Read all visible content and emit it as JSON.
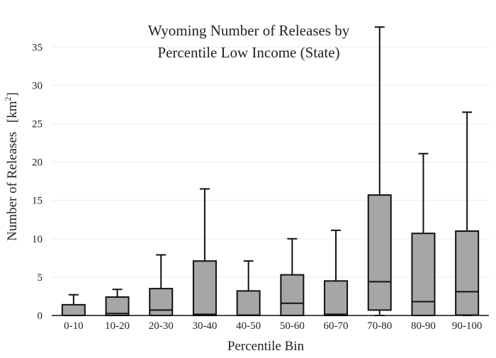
{
  "chart_data": {
    "type": "box",
    "title": [
      "Wyoming Number of Releases by",
      "Percentile Low Income (State)"
    ],
    "xlabel": "Percentile Bin",
    "ylabel": "Number of Releases",
    "ylabel_unit": "[km",
    "ylabel_unit_sup": "2",
    "ylabel_unit_close": "]",
    "ylim": [
      0,
      38
    ],
    "yticks": [
      0,
      5,
      10,
      15,
      20,
      25,
      30,
      35
    ],
    "grid": true,
    "categories": [
      "0-10",
      "10-20",
      "20-30",
      "30-40",
      "40-50",
      "50-60",
      "60-70",
      "70-80",
      "80-90",
      "90-100"
    ],
    "boxes": [
      {
        "min": 0,
        "q1": 0,
        "median": 0,
        "q3": 1.4,
        "max": 2.7
      },
      {
        "min": 0,
        "q1": 0,
        "median": 0.25,
        "q3": 2.4,
        "max": 3.4
      },
      {
        "min": 0,
        "q1": 0,
        "median": 0.7,
        "q3": 3.5,
        "max": 7.9
      },
      {
        "min": 0,
        "q1": 0,
        "median": 0.15,
        "q3": 7.1,
        "max": 16.5
      },
      {
        "min": 0,
        "q1": 0,
        "median": 0.05,
        "q3": 3.2,
        "max": 7.1
      },
      {
        "min": 0,
        "q1": 0,
        "median": 1.6,
        "q3": 5.3,
        "max": 10.0
      },
      {
        "min": 0,
        "q1": 0,
        "median": 0.15,
        "q3": 4.5,
        "max": 11.1
      },
      {
        "min": 0,
        "q1": 0.7,
        "median": 4.4,
        "q3": 15.7,
        "max": 37.6
      },
      {
        "min": 0,
        "q1": 0,
        "median": 1.8,
        "q3": 10.7,
        "max": 21.1
      },
      {
        "min": 0,
        "q1": 0.05,
        "median": 3.1,
        "q3": 11.0,
        "max": 26.5
      }
    ]
  }
}
